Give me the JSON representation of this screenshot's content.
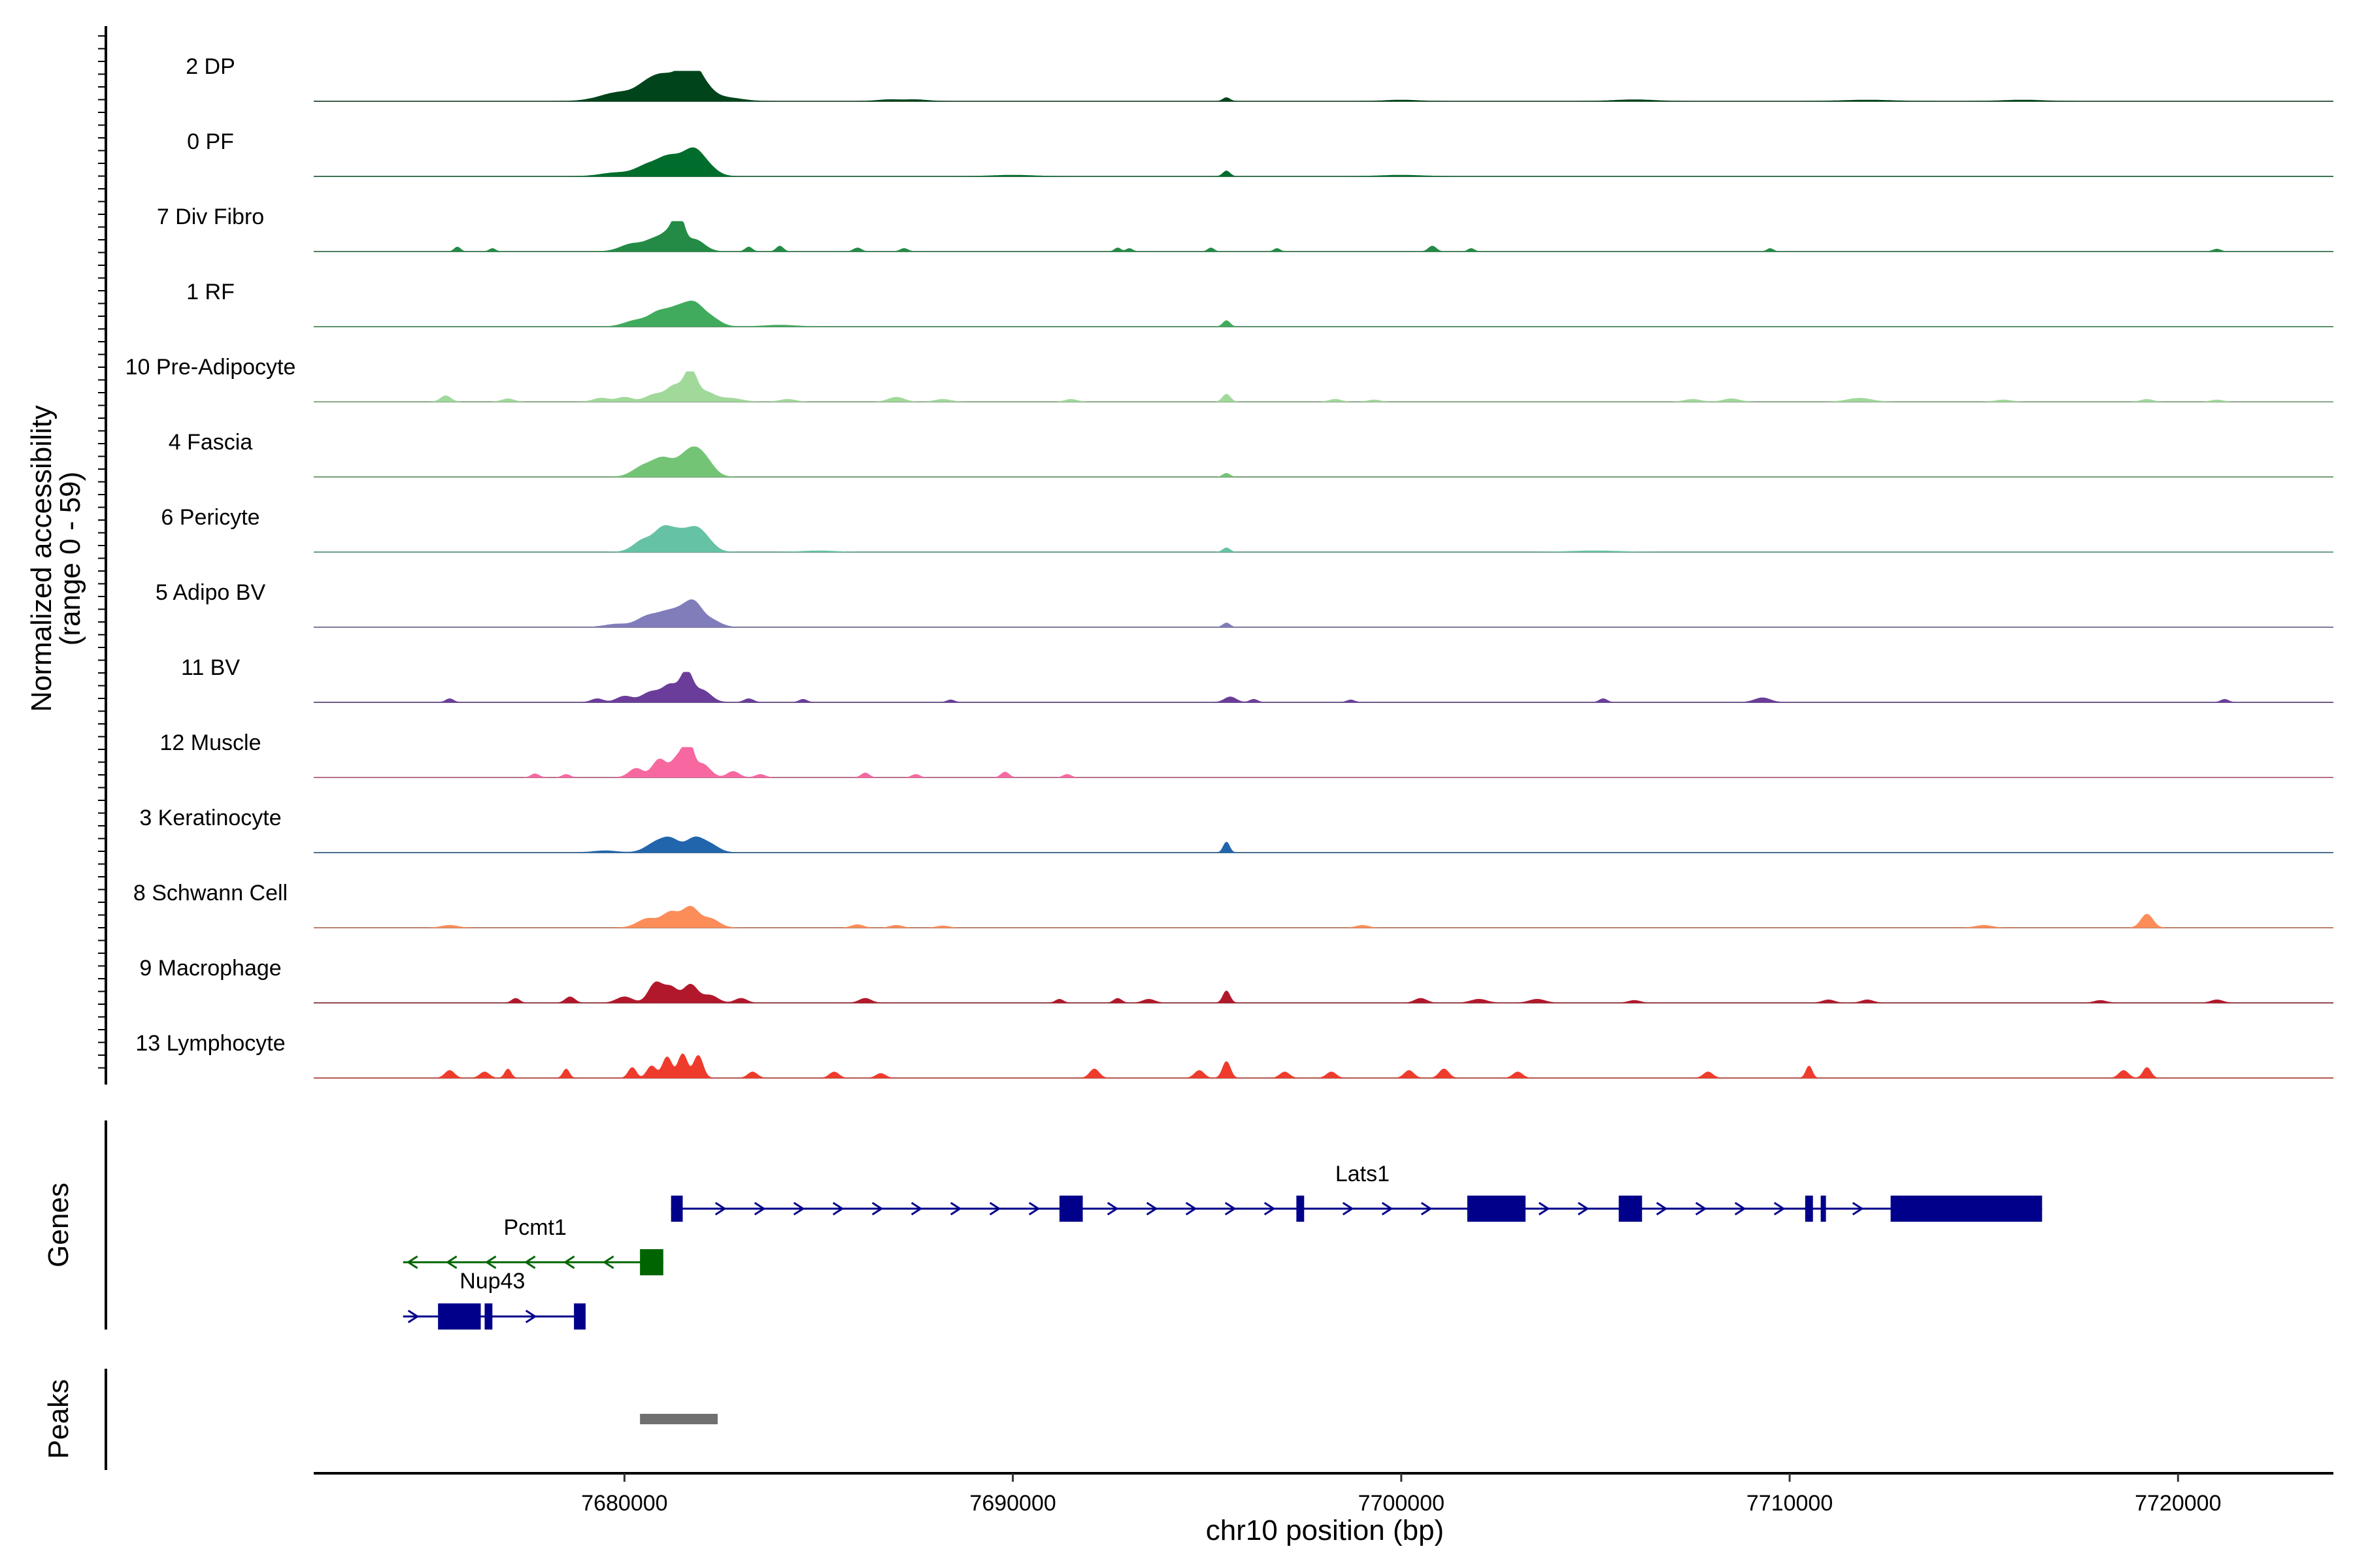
{
  "chart_data": {
    "type": "area",
    "xlabel": "chr10 position (bp)",
    "ylabel": "Normalized accessibility",
    "ylabel_range": "(range 0 - 59)",
    "xlim": [
      7672000,
      7724000
    ],
    "ylim": [
      0,
      59
    ],
    "x_ticks": [
      7680000,
      7690000,
      7700000,
      7710000,
      7720000
    ],
    "x_tick_labels": [
      "7680000",
      "7690000",
      "7700000",
      "7710000",
      "7720000"
    ],
    "genes_panel_label": "Genes",
    "peaks_panel_label": "Peaks",
    "tracks": [
      {
        "name": "2 DP",
        "color": "#00441b",
        "peaks": [
          [
            7679900,
            0.3,
            500
          ],
          [
            7680600,
            0.45,
            280
          ],
          [
            7681000,
            0.6,
            260
          ],
          [
            7681400,
            0.55,
            240
          ],
          [
            7681700,
            0.85,
            220
          ],
          [
            7682000,
            0.5,
            260
          ],
          [
            7682600,
            0.12,
            400
          ],
          [
            7686800,
            0.05,
            300
          ],
          [
            7687500,
            0.05,
            300
          ],
          [
            7695500,
            0.12,
            90
          ],
          [
            7700000,
            0.04,
            400
          ],
          [
            7706000,
            0.05,
            500
          ],
          [
            7712000,
            0.04,
            600
          ],
          [
            7716000,
            0.04,
            500
          ]
        ]
      },
      {
        "name": "0 PF",
        "color": "#006d2c",
        "peaks": [
          [
            7679800,
            0.12,
            400
          ],
          [
            7680600,
            0.35,
            300
          ],
          [
            7681100,
            0.5,
            260
          ],
          [
            7681500,
            0.42,
            250
          ],
          [
            7681800,
            0.55,
            220
          ],
          [
            7682100,
            0.35,
            260
          ],
          [
            7695500,
            0.18,
            90
          ],
          [
            7690000,
            0.04,
            500
          ],
          [
            7700000,
            0.04,
            500
          ]
        ]
      },
      {
        "name": "7 Div Fibro",
        "color": "#238b45",
        "peaks": [
          [
            7675700,
            0.15,
            80
          ],
          [
            7676600,
            0.1,
            80
          ],
          [
            7680200,
            0.25,
            300
          ],
          [
            7680800,
            0.38,
            250
          ],
          [
            7681200,
            0.55,
            200
          ],
          [
            7681400,
            0.92,
            130
          ],
          [
            7681800,
            0.4,
            250
          ],
          [
            7683200,
            0.15,
            90
          ],
          [
            7684000,
            0.18,
            90
          ],
          [
            7686000,
            0.12,
            100
          ],
          [
            7687200,
            0.1,
            100
          ],
          [
            7692700,
            0.12,
            80
          ],
          [
            7693000,
            0.1,
            80
          ],
          [
            7695100,
            0.12,
            80
          ],
          [
            7696800,
            0.1,
            80
          ],
          [
            7700800,
            0.18,
            100
          ],
          [
            7701800,
            0.1,
            80
          ],
          [
            7709500,
            0.1,
            80
          ],
          [
            7721000,
            0.08,
            100
          ]
        ]
      },
      {
        "name": "1 RF",
        "color": "#41ab5d",
        "peaks": [
          [
            7680300,
            0.2,
            300
          ],
          [
            7680900,
            0.45,
            260
          ],
          [
            7681400,
            0.55,
            250
          ],
          [
            7681800,
            0.6,
            220
          ],
          [
            7682200,
            0.3,
            250
          ],
          [
            7695500,
            0.2,
            90
          ],
          [
            7684000,
            0.05,
            400
          ]
        ]
      },
      {
        "name": "10 Pre-Adipocyte",
        "color": "#a1d99b",
        "peaks": [
          [
            7675400,
            0.2,
            130
          ],
          [
            7677000,
            0.1,
            150
          ],
          [
            7679400,
            0.12,
            200
          ],
          [
            7680000,
            0.15,
            200
          ],
          [
            7680800,
            0.25,
            250
          ],
          [
            7681300,
            0.5,
            200
          ],
          [
            7681700,
            1.0,
            160
          ],
          [
            7682100,
            0.3,
            220
          ],
          [
            7682700,
            0.12,
            300
          ],
          [
            7684200,
            0.08,
            200
          ],
          [
            7687000,
            0.15,
            200
          ],
          [
            7688200,
            0.08,
            200
          ],
          [
            7691500,
            0.08,
            150
          ],
          [
            7695500,
            0.25,
            100
          ],
          [
            7698300,
            0.08,
            150
          ],
          [
            7699300,
            0.06,
            150
          ],
          [
            7707500,
            0.08,
            200
          ],
          [
            7708500,
            0.1,
            200
          ],
          [
            7711800,
            0.12,
            300
          ],
          [
            7715500,
            0.06,
            200
          ],
          [
            7719200,
            0.08,
            150
          ],
          [
            7721000,
            0.06,
            150
          ]
        ]
      },
      {
        "name": "4 Fascia",
        "color": "#74c476",
        "peaks": [
          [
            7680500,
            0.35,
            280
          ],
          [
            7681000,
            0.55,
            250
          ],
          [
            7681500,
            0.45,
            230
          ],
          [
            7681800,
            0.62,
            220
          ],
          [
            7682100,
            0.45,
            230
          ],
          [
            7695500,
            0.12,
            90
          ]
        ]
      },
      {
        "name": "6 Pericyte",
        "color": "#66c2a4",
        "peaks": [
          [
            7680500,
            0.4,
            260
          ],
          [
            7681000,
            0.7,
            220
          ],
          [
            7681400,
            0.55,
            220
          ],
          [
            7681800,
            0.6,
            220
          ],
          [
            7682100,
            0.35,
            230
          ],
          [
            7695500,
            0.14,
            90
          ],
          [
            7685000,
            0.04,
            400
          ],
          [
            7705000,
            0.04,
            600
          ]
        ]
      },
      {
        "name": "5 Adipo BV",
        "color": "#807dba",
        "peaks": [
          [
            7679800,
            0.1,
            300
          ],
          [
            7680600,
            0.35,
            280
          ],
          [
            7681100,
            0.4,
            250
          ],
          [
            7681500,
            0.45,
            230
          ],
          [
            7681800,
            0.62,
            200
          ],
          [
            7682200,
            0.25,
            250
          ],
          [
            7695500,
            0.14,
            90
          ]
        ]
      },
      {
        "name": "11 BV",
        "color": "#6a3d9a",
        "peaks": [
          [
            7675500,
            0.12,
            100
          ],
          [
            7679300,
            0.12,
            150
          ],
          [
            7680000,
            0.2,
            200
          ],
          [
            7680700,
            0.35,
            250
          ],
          [
            7681200,
            0.55,
            200
          ],
          [
            7681600,
            0.95,
            150
          ],
          [
            7682000,
            0.4,
            220
          ],
          [
            7683200,
            0.12,
            120
          ],
          [
            7684600,
            0.1,
            100
          ],
          [
            7688400,
            0.08,
            100
          ],
          [
            7695600,
            0.18,
            150
          ],
          [
            7696200,
            0.1,
            100
          ],
          [
            7698700,
            0.08,
            100
          ],
          [
            7705200,
            0.12,
            100
          ],
          [
            7709300,
            0.15,
            200
          ],
          [
            7721200,
            0.1,
            100
          ]
        ]
      },
      {
        "name": "12 Muscle",
        "color": "#f768a1",
        "peaks": [
          [
            7677700,
            0.12,
            100
          ],
          [
            7678500,
            0.1,
            100
          ],
          [
            7680300,
            0.3,
            180
          ],
          [
            7680900,
            0.6,
            180
          ],
          [
            7681400,
            0.7,
            180
          ],
          [
            7681650,
            1.0,
            120
          ],
          [
            7682000,
            0.45,
            200
          ],
          [
            7682800,
            0.2,
            150
          ],
          [
            7683500,
            0.1,
            120
          ],
          [
            7686200,
            0.15,
            100
          ],
          [
            7687500,
            0.1,
            100
          ],
          [
            7689800,
            0.18,
            100
          ],
          [
            7691400,
            0.1,
            100
          ]
        ]
      },
      {
        "name": "3 Keratinocyte",
        "color": "#2166ac",
        "peaks": [
          [
            7680800,
            0.3,
            260
          ],
          [
            7681200,
            0.4,
            230
          ],
          [
            7681800,
            0.45,
            220
          ],
          [
            7682200,
            0.25,
            230
          ],
          [
            7695500,
            0.35,
            80
          ],
          [
            7679500,
            0.06,
            300
          ]
        ]
      },
      {
        "name": "8 Schwann Cell",
        "color": "#fc8d59",
        "peaks": [
          [
            7675500,
            0.08,
            200
          ],
          [
            7680600,
            0.3,
            260
          ],
          [
            7681200,
            0.5,
            220
          ],
          [
            7681700,
            0.65,
            200
          ],
          [
            7682200,
            0.3,
            230
          ],
          [
            7686000,
            0.1,
            150
          ],
          [
            7687000,
            0.08,
            150
          ],
          [
            7688200,
            0.06,
            150
          ],
          [
            7699000,
            0.08,
            150
          ],
          [
            7715000,
            0.08,
            200
          ],
          [
            7719200,
            0.45,
            150
          ]
        ]
      },
      {
        "name": "9 Macrophage",
        "color": "#b2182b",
        "peaks": [
          [
            7677200,
            0.15,
            100
          ],
          [
            7678600,
            0.2,
            120
          ],
          [
            7680000,
            0.2,
            200
          ],
          [
            7680800,
            0.65,
            180
          ],
          [
            7681200,
            0.5,
            180
          ],
          [
            7681700,
            0.6,
            180
          ],
          [
            7682200,
            0.25,
            200
          ],
          [
            7683000,
            0.15,
            150
          ],
          [
            7686200,
            0.15,
            150
          ],
          [
            7691200,
            0.12,
            100
          ],
          [
            7692700,
            0.15,
            100
          ],
          [
            7693500,
            0.12,
            150
          ],
          [
            7695500,
            0.4,
            90
          ],
          [
            7700500,
            0.15,
            150
          ],
          [
            7702000,
            0.12,
            200
          ],
          [
            7703500,
            0.12,
            200
          ],
          [
            7706000,
            0.08,
            150
          ],
          [
            7711000,
            0.1,
            150
          ],
          [
            7712000,
            0.1,
            150
          ],
          [
            7718000,
            0.08,
            150
          ],
          [
            7721000,
            0.1,
            150
          ]
        ]
      },
      {
        "name": "13 Lymphocyte",
        "color": "#ef3b2c",
        "peaks": [
          [
            7675500,
            0.25,
            120
          ],
          [
            7676400,
            0.2,
            120
          ],
          [
            7677000,
            0.3,
            80
          ],
          [
            7678500,
            0.3,
            80
          ],
          [
            7680200,
            0.35,
            100
          ],
          [
            7680700,
            0.4,
            120
          ],
          [
            7681100,
            0.7,
            120
          ],
          [
            7681500,
            0.8,
            120
          ],
          [
            7681900,
            0.75,
            120
          ],
          [
            7683300,
            0.2,
            120
          ],
          [
            7685400,
            0.2,
            120
          ],
          [
            7686600,
            0.15,
            120
          ],
          [
            7692100,
            0.3,
            120
          ],
          [
            7694800,
            0.25,
            120
          ],
          [
            7695500,
            0.55,
            100
          ],
          [
            7697000,
            0.2,
            120
          ],
          [
            7698200,
            0.2,
            120
          ],
          [
            7700200,
            0.25,
            120
          ],
          [
            7701100,
            0.3,
            120
          ],
          [
            7703000,
            0.2,
            120
          ],
          [
            7707900,
            0.2,
            120
          ],
          [
            7710500,
            0.4,
            80
          ],
          [
            7718600,
            0.25,
            120
          ],
          [
            7719200,
            0.35,
            100
          ]
        ]
      }
    ],
    "genes": [
      {
        "name": "Lats1",
        "strand": "+",
        "color": "#00008b",
        "start": 7681200,
        "end": 7716500,
        "exons": [
          [
            7681200,
            7681500
          ],
          [
            7691200,
            7691800
          ],
          [
            7697300,
            7697500
          ],
          [
            7701700,
            7703200
          ],
          [
            7705600,
            7706200
          ],
          [
            7710400,
            7710600
          ],
          [
            7710800,
            7710900
          ],
          [
            7712600,
            7716500
          ]
        ]
      },
      {
        "name": "Pcmt1",
        "strand": "-",
        "color": "#006400",
        "start": 7674300,
        "end": 7681000,
        "exons": [
          [
            7680400,
            7681000
          ]
        ]
      },
      {
        "name": "Nup43",
        "strand": "+",
        "color": "#00008b",
        "start": 7674300,
        "end": 7679000,
        "exons": [
          [
            7675200,
            7676300
          ],
          [
            7676400,
            7676600
          ],
          [
            7678700,
            7679000
          ]
        ]
      }
    ],
    "peaks_ranges": [
      [
        7680400,
        7682400
      ]
    ],
    "grid": false,
    "legend": "none"
  }
}
